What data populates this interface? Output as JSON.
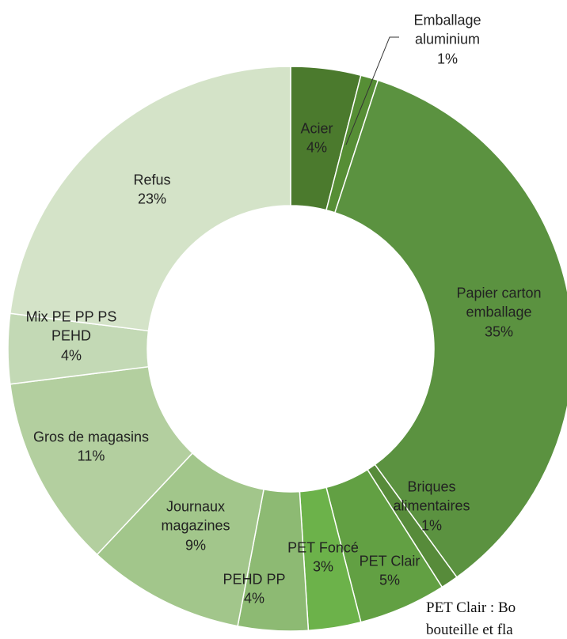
{
  "chart_data": {
    "type": "donut",
    "categories": [
      "Acier",
      "Emballage aluminium",
      "Papier carton emballage",
      "Briques alimentaires",
      "PET Clair",
      "PET Foncé",
      "PEHD PP",
      "Journaux magazines",
      "Gros de magasins",
      "Mix PE PP PS PEHD",
      "Refus"
    ],
    "values": [
      4,
      1,
      35,
      1,
      5,
      3,
      4,
      9,
      11,
      4,
      23
    ],
    "value_labels": [
      "4%",
      "1%",
      "35%",
      "1%",
      "5%",
      "3%",
      "4%",
      "9%",
      "11%",
      "4%",
      "23%"
    ],
    "colors": [
      "#4b7a2d",
      "#568e35",
      "#5b9240",
      "#578b3a",
      "#62a043",
      "#6cb24a",
      "#8dba73",
      "#a2c68b",
      "#b3cf9f",
      "#c3d9b5",
      "#d4e3c8"
    ]
  },
  "note": [
    "PET Clair : Bo",
    "bouteille et fla"
  ]
}
